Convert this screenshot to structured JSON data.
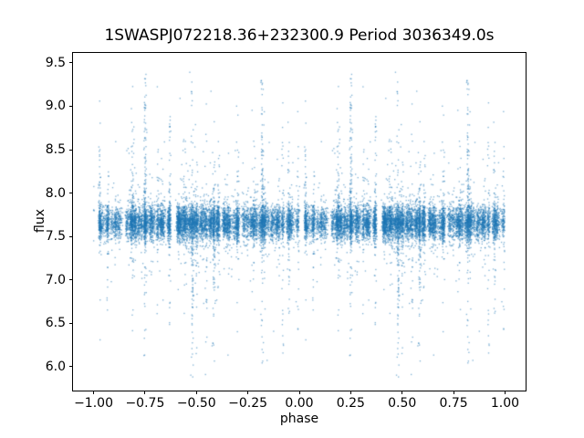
{
  "chart_data": {
    "type": "scatter",
    "title": "1SWASPJ072218.36+232300.9 Period 3036349.0s",
    "xlabel": "phase",
    "ylabel": "flux",
    "xlim": [
      -1.1,
      1.1
    ],
    "ylim": [
      5.73,
      9.62
    ],
    "grid": false,
    "legend": null,
    "background_color": "#ffffff",
    "marker_color": "#1f77b4",
    "marker_alpha": 0.55,
    "marker_size_px": 1.35,
    "x_ticks": [
      {
        "value": -1.0,
        "label": "−1.00"
      },
      {
        "value": -0.75,
        "label": "−0.75"
      },
      {
        "value": -0.5,
        "label": "−0.50"
      },
      {
        "value": -0.25,
        "label": "−0.25"
      },
      {
        "value": 0.0,
        "label": "0.00"
      },
      {
        "value": 0.25,
        "label": "0.25"
      },
      {
        "value": 0.5,
        "label": "0.50"
      },
      {
        "value": 0.75,
        "label": "0.75"
      },
      {
        "value": 1.0,
        "label": "1.00"
      }
    ],
    "y_ticks": [
      {
        "value": 6.0,
        "label": "6.0"
      },
      {
        "value": 6.5,
        "label": "6.5"
      },
      {
        "value": 7.0,
        "label": "7.0"
      },
      {
        "value": 7.5,
        "label": "7.5"
      },
      {
        "value": 8.0,
        "label": "8.0"
      },
      {
        "value": 8.5,
        "label": "8.5"
      },
      {
        "value": 9.0,
        "label": "9.0"
      },
      {
        "value": 9.5,
        "label": "9.5"
      }
    ],
    "description": "Phase-folded SuperWASP light curve; dense flux band near 7.66 with vertical outlier streaks; each cycle point duplicated at phase-1 so pattern repeats over [-1,1]",
    "point_generation": {
      "seed": 1337,
      "n_points": 9500,
      "duplicate_offset": -1,
      "n_phase_clusters": 120,
      "cluster_jitter": 0.0045,
      "band": {
        "center": 7.66,
        "sigma": 0.095
      },
      "base_outlier_prob": 0.055,
      "base_outlier_scale": 0.22,
      "base_up_weight": 0.58,
      "base_down_weight": 0.42,
      "base_reach": 0.95,
      "streak_outlier_prob": 0.38,
      "diffuse_extreme_prob": 0.003,
      "flux_min": 5.88,
      "flux_max": 9.45,
      "gaps": [
        0.15,
        0.385
      ],
      "gap_halfwidth": 0.011,
      "streaks": [
        {
          "phase": 0.25,
          "weight": 3.2,
          "up": 1.0,
          "down": 0.3,
          "reach": 1.75
        },
        {
          "phase": 0.82,
          "weight": 2.8,
          "up": 1.0,
          "down": 0.35,
          "reach": 1.7
        },
        {
          "phase": 0.48,
          "weight": 2.6,
          "up": 0.35,
          "down": 1.0,
          "reach": 1.85
        },
        {
          "phase": 0.585,
          "weight": 2.0,
          "up": 0.25,
          "down": 1.0,
          "reach": 1.75
        },
        {
          "phase": 0.19,
          "weight": 1.7,
          "up": 0.85,
          "down": 0.3,
          "reach": 1.5
        },
        {
          "phase": 0.7,
          "weight": 1.4,
          "up": 0.75,
          "down": 0.45,
          "reach": 1.35
        },
        {
          "phase": 0.03,
          "weight": 1.3,
          "up": 0.7,
          "down": 0.4,
          "reach": 1.45
        },
        {
          "phase": 0.95,
          "weight": 1.3,
          "up": 0.5,
          "down": 0.6,
          "reach": 1.3
        },
        {
          "phase": 0.37,
          "weight": 1.2,
          "up": 0.6,
          "down": 0.55,
          "reach": 1.25
        },
        {
          "phase": 0.92,
          "weight": 1.1,
          "up": 0.35,
          "down": 0.85,
          "reach": 1.55
        },
        {
          "phase": 0.5,
          "weight": 1.2,
          "up": 0.3,
          "down": 0.9,
          "reach": 1.6
        },
        {
          "phase": 0.55,
          "weight": 1.0,
          "up": 0.3,
          "down": 0.8,
          "reach": 1.45
        },
        {
          "phase": 0.44,
          "weight": 0.9,
          "up": 0.7,
          "down": 0.35,
          "reach": 1.2
        },
        {
          "phase": 0.61,
          "weight": 0.9,
          "up": 0.65,
          "down": 0.4,
          "reach": 1.15
        },
        {
          "phase": 0.07,
          "weight": 0.9,
          "up": 0.5,
          "down": 0.6,
          "reach": 1.05
        },
        {
          "phase": 0.78,
          "weight": 0.8,
          "up": 0.5,
          "down": 0.5,
          "reach": 1.0
        },
        {
          "phase": 0.31,
          "weight": 0.8,
          "up": 0.6,
          "down": 0.4,
          "reach": 1.0
        },
        {
          "phase": 0.995,
          "weight": 1.0,
          "up": 0.6,
          "down": 0.5,
          "reach": 1.3
        }
      ]
    }
  }
}
